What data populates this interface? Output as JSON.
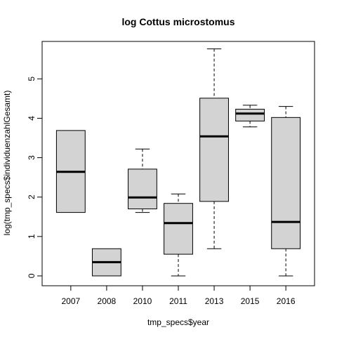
{
  "chart_data": {
    "type": "boxplot",
    "title": "log Cottus microstomus",
    "xlabel": "tmp_specs$year",
    "ylabel": "log(tmp_specs$individuenzahlGesamt)",
    "categories": [
      "2007",
      "2008",
      "2010",
      "2011",
      "2013",
      "2015",
      "2016"
    ],
    "boxes": [
      {
        "category": "2007",
        "whisker_low": 1.61,
        "q1": 1.61,
        "median": 2.64,
        "q3": 3.69,
        "whisker_high": 3.69
      },
      {
        "category": "2008",
        "whisker_low": 0.0,
        "q1": 0.0,
        "median": 0.35,
        "q3": 0.69,
        "whisker_high": 0.69
      },
      {
        "category": "2010",
        "whisker_low": 1.61,
        "q1": 1.7,
        "median": 1.99,
        "q3": 2.71,
        "whisker_high": 3.22
      },
      {
        "category": "2011",
        "whisker_low": 0.0,
        "q1": 0.55,
        "median": 1.34,
        "q3": 1.84,
        "whisker_high": 2.08
      },
      {
        "category": "2013",
        "whisker_low": 0.69,
        "q1": 1.89,
        "median": 3.54,
        "q3": 4.51,
        "whisker_high": 5.76
      },
      {
        "category": "2015",
        "whisker_low": 3.78,
        "q1": 3.93,
        "median": 4.12,
        "q3": 4.23,
        "whisker_high": 4.33
      },
      {
        "category": "2016",
        "whisker_low": 0.0,
        "q1": 0.69,
        "median": 1.37,
        "q3": 4.02,
        "whisker_high": 4.3
      }
    ],
    "yticks": [
      0,
      1,
      2,
      3,
      4,
      5
    ],
    "ylim": [
      -0.25,
      5.95
    ],
    "grid": false,
    "colors": {
      "box_fill": "#d3d3d3",
      "stroke": "#000000"
    }
  }
}
